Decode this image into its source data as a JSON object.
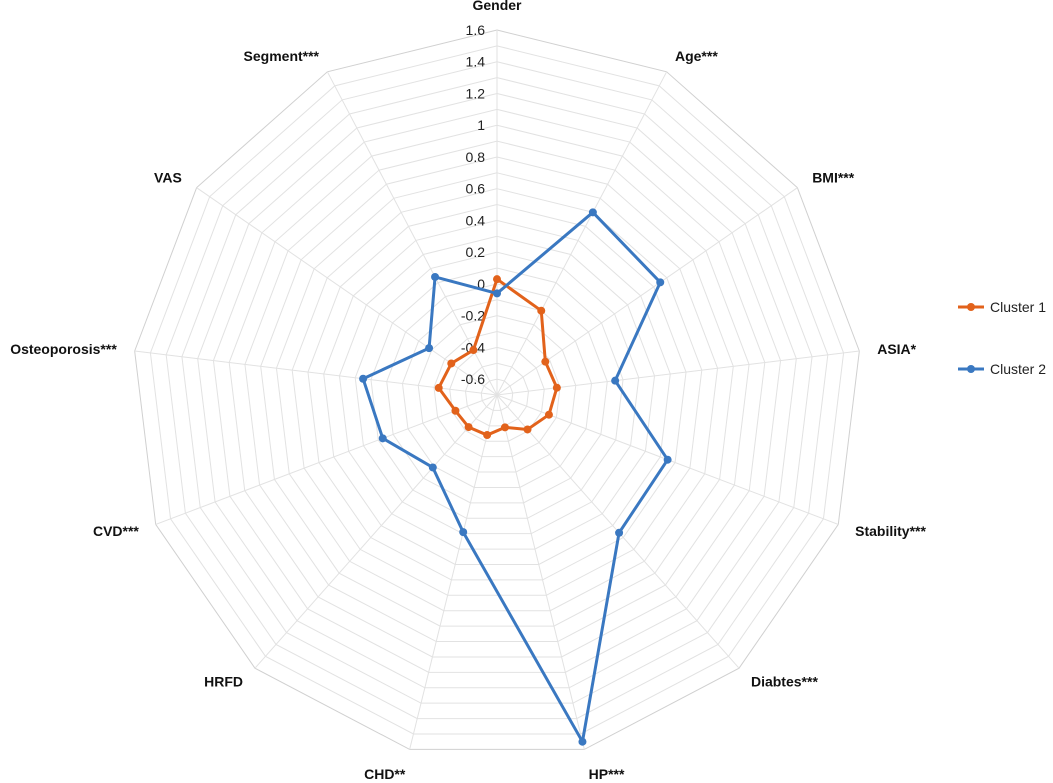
{
  "chart_data": {
    "type": "radar",
    "axes": [
      "Gender",
      "Age***",
      "BMI***",
      "ASIA*",
      "Stability***",
      "Diabtes***",
      "HP***",
      "CHD**",
      "HRFD",
      "CVD***",
      "Osteoporosis***",
      "VAS",
      "Segment***"
    ],
    "r_ticks": [
      "1.6",
      "1.4",
      "1.2",
      "1",
      "0.8",
      "0.6",
      "0.4",
      "0.2",
      "0",
      "-0.2",
      "-0.4",
      "-0.6"
    ],
    "r_range": [
      -0.7,
      1.6
    ],
    "grid": true,
    "legend_position": "right",
    "series": [
      {
        "name": "Cluster 1",
        "color": "#E2621B",
        "values": [
          0.03,
          -0.1,
          -0.33,
          -0.32,
          -0.35,
          -0.41,
          -0.49,
          -0.44,
          -0.43,
          -0.42,
          -0.33,
          -0.35,
          -0.38
        ]
      },
      {
        "name": "Cluster 2",
        "color": "#3A78C1",
        "values": [
          -0.06,
          0.6,
          0.55,
          0.05,
          0.45,
          0.46,
          1.55,
          0.19,
          -0.09,
          0.07,
          0.15,
          -0.18,
          0.14
        ]
      }
    ]
  }
}
